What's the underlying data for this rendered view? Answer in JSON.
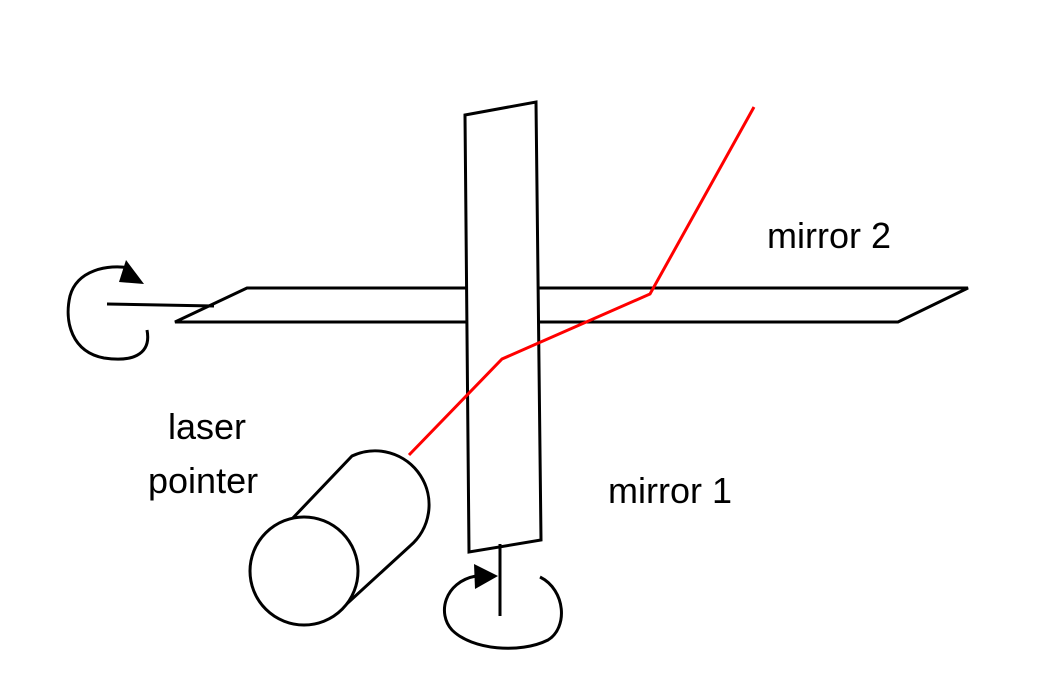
{
  "labels": {
    "mirror2": "mirror 2",
    "mirror1": "mirror 1",
    "laser_line1": "laser",
    "laser_line2": "pointer"
  },
  "colors": {
    "beam": "#ff0000",
    "outline": "#000000",
    "background": "#ffffff"
  }
}
